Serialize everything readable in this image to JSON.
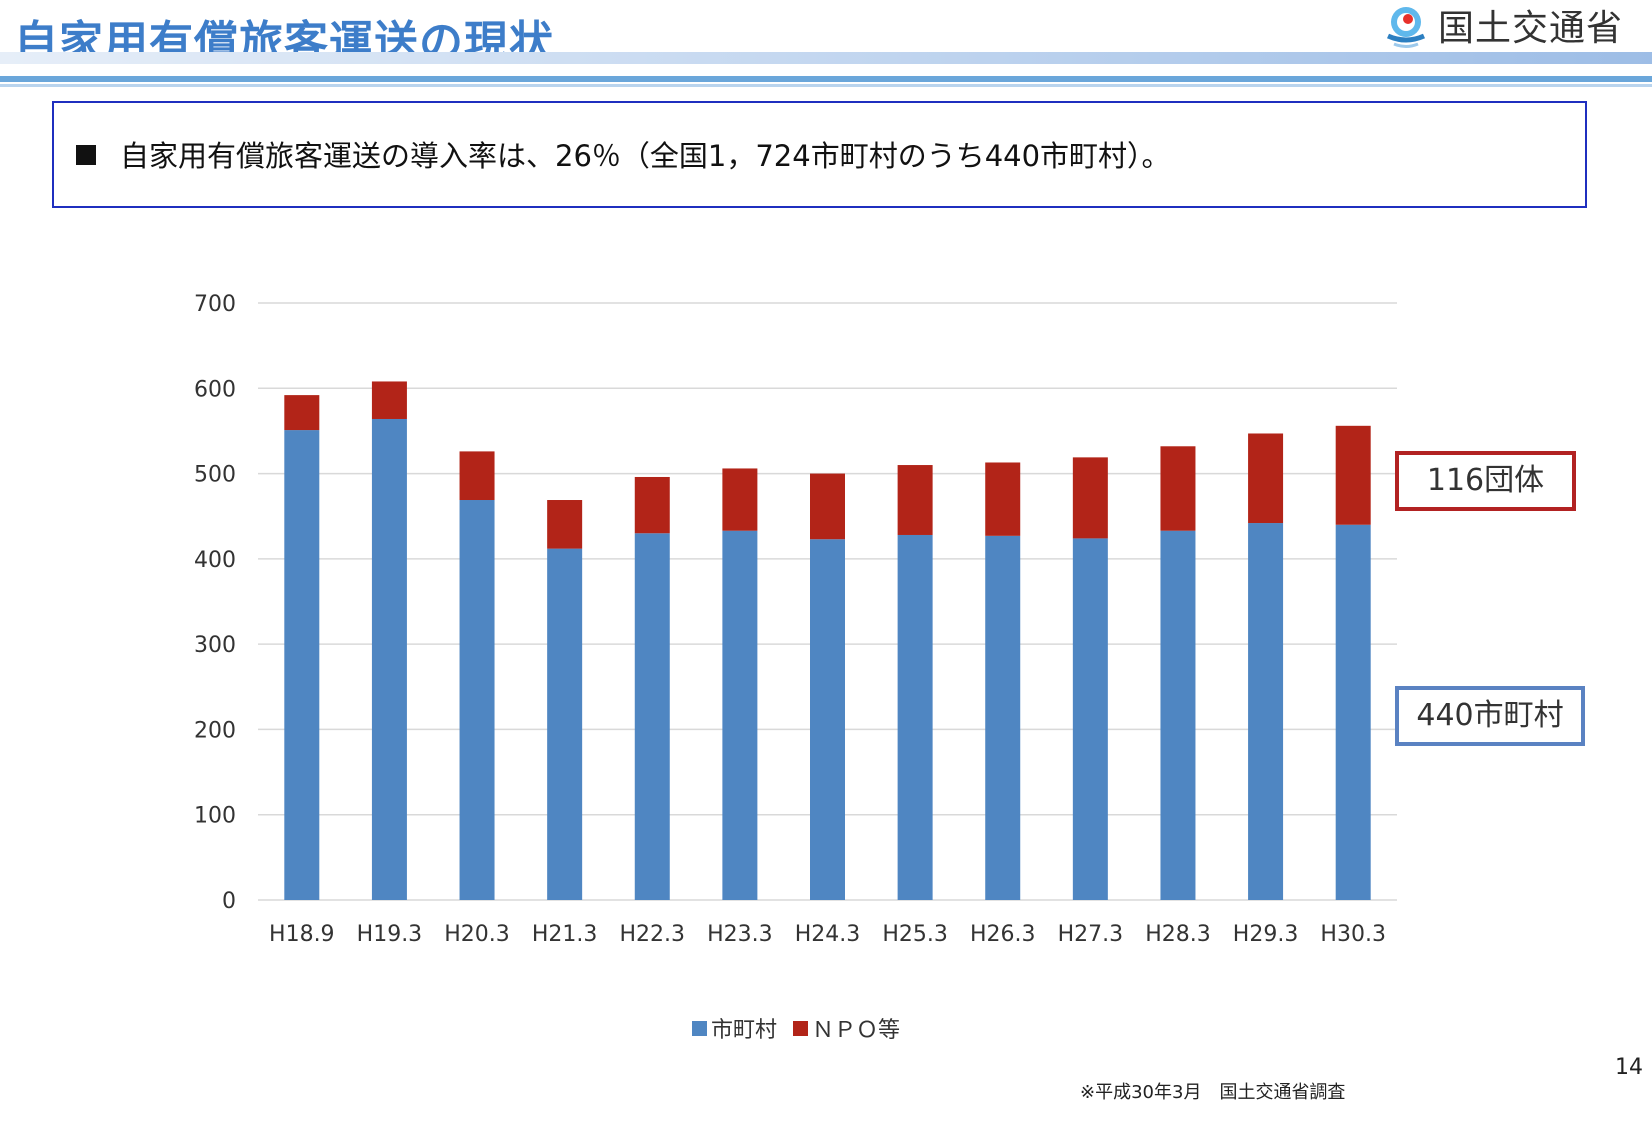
{
  "slide": {
    "title": "自家用有償旅客運送の現状",
    "ministry": "国土交通省",
    "summary": "自家用有償旅客運送の導入率は、26％（全国1，724市町村のうち440市町村）。",
    "callout_npo": "116団体",
    "callout_muni": "440市町村",
    "source_note": "※平成30年3月　国土交通省調査",
    "page_number": "14"
  },
  "colors": {
    "municipality": "#4f86c2",
    "npo": "#b22418",
    "title": "#3d7dc9"
  },
  "chart_data": {
    "type": "bar",
    "stacked": true,
    "categories": [
      "H18.9",
      "H19.3",
      "H20.3",
      "H21.3",
      "H22.3",
      "H23.3",
      "H24.3",
      "H25.3",
      "H26.3",
      "H27.3",
      "H28.3",
      "H29.3",
      "H30.3"
    ],
    "series": [
      {
        "name": "市町村",
        "values": [
          551,
          564,
          469,
          412,
          430,
          433,
          423,
          428,
          427,
          424,
          433,
          442,
          440
        ]
      },
      {
        "name": "ＮＰＯ等",
        "values": [
          41,
          44,
          57,
          57,
          66,
          73,
          77,
          82,
          86,
          95,
          99,
          105,
          116
        ]
      }
    ],
    "ylim": [
      0,
      700
    ],
    "yticks": [
      "0",
      "100",
      "200",
      "300",
      "400",
      "500",
      "600",
      "700"
    ],
    "grid": true,
    "legend_position": "bottom"
  }
}
